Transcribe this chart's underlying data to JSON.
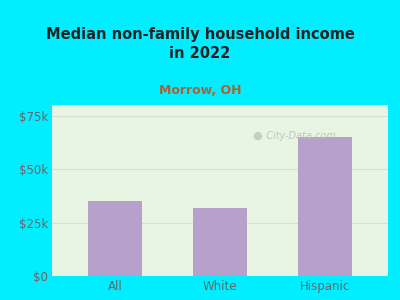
{
  "title": "Median non-family household income\nin 2022",
  "subtitle": "Morrow, OH",
  "categories": [
    "All",
    "White",
    "Hispanic"
  ],
  "values": [
    35000,
    32000,
    65000
  ],
  "bar_color": "#b8a0cc",
  "background_outer": "#00eeff",
  "background_chart_top": "#e8f5e2",
  "background_chart_bottom": "#f5fdf5",
  "subtitle_color": "#b06030",
  "title_color": "#222222",
  "axis_label_color": "#666666",
  "ylim": [
    0,
    80000
  ],
  "yticks": [
    0,
    25000,
    50000,
    75000
  ],
  "ytick_labels": [
    "$0",
    "$25k",
    "$50k",
    "$75k"
  ],
  "grid_color": "#ddddcc",
  "watermark": "  City-Data.com"
}
